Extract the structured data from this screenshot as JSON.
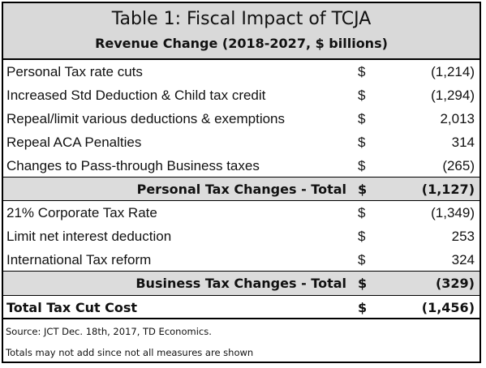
{
  "header": {
    "title": "Table 1: Fiscal Impact of TCJA",
    "subtitle": "Revenue Change (2018-2027, $ billions)"
  },
  "personal_rows": [
    {
      "label": "Personal Tax rate cuts",
      "currency": "$",
      "value": "(1,214)"
    },
    {
      "label": "Increased Std Deduction & Child tax credit",
      "currency": "$",
      "value": "(1,294)"
    },
    {
      "label": "Repeal/limit various deductions & exemptions",
      "currency": "$",
      "value": "2,013"
    },
    {
      "label": "Repeal ACA Penalties",
      "currency": "$",
      "value": "314"
    },
    {
      "label": "Changes to Pass-through Business taxes",
      "currency": "$",
      "value": "(265)"
    }
  ],
  "personal_total": {
    "label": "Personal Tax Changes - Total",
    "currency": "$",
    "value": "(1,127)"
  },
  "business_rows": [
    {
      "label": "21% Corporate Tax Rate",
      "currency": "$",
      "value": "(1,349)"
    },
    {
      "label": "Limit net interest deduction",
      "currency": "$",
      "value": "253"
    },
    {
      "label": "International Tax reform",
      "currency": "$",
      "value": "324"
    }
  ],
  "business_total": {
    "label": "Business Tax Changes - Total",
    "currency": "$",
    "value": "(329)"
  },
  "grand_total": {
    "label": "Total Tax Cut Cost",
    "currency": "$",
    "value": "(1,456)"
  },
  "notes": {
    "source": "Source: JCT Dec. 18th, 2017, TD Economics.",
    "totals": "Totals may not add since not all measures are shown"
  }
}
